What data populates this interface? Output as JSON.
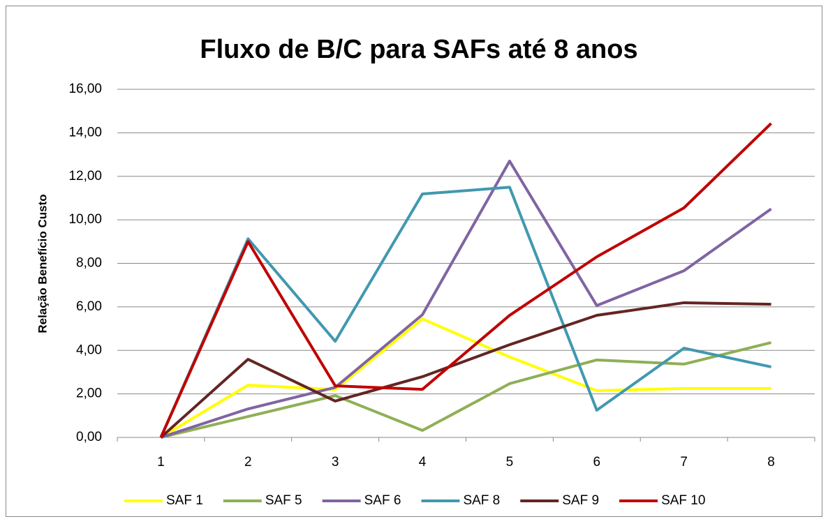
{
  "chart_data": {
    "type": "line",
    "title": "Fluxo de B/C para SAFs até 8 anos",
    "y_label": "Relação Benefício Custo",
    "categories": [
      "1",
      "2",
      "3",
      "4",
      "5",
      "6",
      "7",
      "8"
    ],
    "series": [
      {
        "name": "SAF 1",
        "color": "#ffff00",
        "values": [
          0,
          2.4,
          2.2,
          5.45,
          3.7,
          2.15,
          2.25,
          2.25
        ]
      },
      {
        "name": "SAF 5",
        "color": "#8faf55",
        "values": [
          0,
          0.96,
          1.92,
          0.32,
          2.47,
          3.56,
          3.37,
          4.36
        ]
      },
      {
        "name": "SAF 6",
        "color": "#8064a2",
        "values": [
          0,
          1.31,
          2.3,
          5.64,
          12.7,
          6.06,
          7.66,
          10.5
        ]
      },
      {
        "name": "SAF 8",
        "color": "#4198af",
        "values": [
          0,
          9.13,
          4.42,
          11.19,
          11.5,
          1.25,
          4.1,
          3.24
        ]
      },
      {
        "name": "SAF 9",
        "color": "#632523",
        "values": [
          0,
          3.59,
          1.67,
          2.79,
          4.26,
          5.61,
          6.19,
          6.12
        ]
      },
      {
        "name": "SAF 10",
        "color": "#c00000",
        "values": [
          0,
          9.0,
          2.37,
          2.21,
          5.61,
          8.3,
          10.55,
          14.43
        ]
      }
    ],
    "ylim": [
      0,
      16
    ],
    "yticks": [
      {
        "value": 0,
        "label": "0,00"
      },
      {
        "value": 2,
        "label": "2,00"
      },
      {
        "value": 4,
        "label": "4,00"
      },
      {
        "value": 6,
        "label": "6,00"
      },
      {
        "value": 8,
        "label": "8,00"
      },
      {
        "value": 10,
        "label": "10,00"
      },
      {
        "value": 12,
        "label": "12,00"
      },
      {
        "value": 14,
        "label": "14,00"
      },
      {
        "value": 16,
        "label": "16,00"
      }
    ],
    "grid": true,
    "legend": "bottom"
  }
}
